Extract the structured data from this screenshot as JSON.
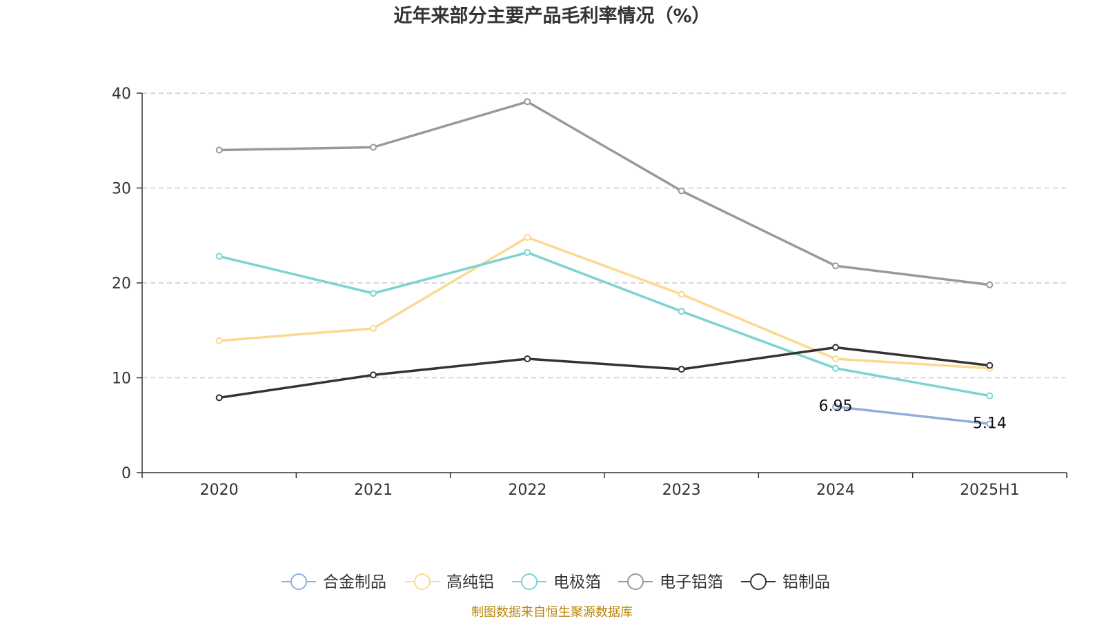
{
  "chart_data": {
    "type": "line",
    "title": "近年来部分主要产品毛利率情况（%）",
    "categories": [
      "2020",
      "2021",
      "2022",
      "2023",
      "2024",
      "2025H1"
    ],
    "y_ticks": [
      "0",
      "10",
      "20",
      "30",
      "40"
    ],
    "ylim": [
      0,
      40
    ],
    "grid": true,
    "legend_position": "bottom",
    "series": [
      {
        "name": "合金制品",
        "color": "#8eaedb",
        "values": [
          null,
          null,
          null,
          null,
          6.95,
          5.14
        ],
        "labels": [
          null,
          null,
          null,
          null,
          "6.95",
          "5.14"
        ]
      },
      {
        "name": "高纯铝",
        "color": "#fbd98e",
        "values": [
          13.9,
          15.2,
          24.8,
          18.8,
          12.0,
          11.0
        ]
      },
      {
        "name": "电极箔",
        "color": "#7dd3d3",
        "values": [
          22.8,
          18.9,
          23.2,
          17.0,
          11.0,
          8.1
        ]
      },
      {
        "name": "电子铝箔",
        "color": "#999999",
        "values": [
          34.0,
          34.3,
          39.1,
          29.7,
          21.8,
          19.8
        ]
      },
      {
        "name": "铝制品",
        "color": "#333333",
        "values": [
          7.9,
          10.3,
          12.0,
          10.9,
          13.2,
          11.3
        ]
      }
    ],
    "source": "制图数据来自恒生聚源数据库"
  }
}
